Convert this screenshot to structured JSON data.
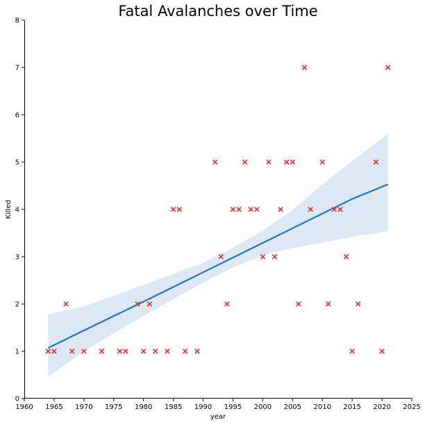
{
  "chart_data": {
    "type": "scatter",
    "title": "Fatal Avalanches over Time",
    "xlabel": "year",
    "ylabel": "Killed",
    "xlim": [
      1960,
      2025
    ],
    "ylim": [
      0,
      8
    ],
    "xticks": [
      1960,
      1965,
      1970,
      1975,
      1980,
      1985,
      1990,
      1995,
      2000,
      2005,
      2010,
      2015,
      2020,
      2025
    ],
    "yticks": [
      0,
      1,
      2,
      3,
      4,
      5,
      6,
      7,
      8
    ],
    "grid": false,
    "marker": "x",
    "marker_color": "#e8272b",
    "points": [
      {
        "x": 1964,
        "y": 1
      },
      {
        "x": 1965,
        "y": 1
      },
      {
        "x": 1967,
        "y": 2
      },
      {
        "x": 1968,
        "y": 1
      },
      {
        "x": 1970,
        "y": 1
      },
      {
        "x": 1973,
        "y": 1
      },
      {
        "x": 1976,
        "y": 1
      },
      {
        "x": 1977,
        "y": 1
      },
      {
        "x": 1979,
        "y": 2
      },
      {
        "x": 1980,
        "y": 1
      },
      {
        "x": 1981,
        "y": 2
      },
      {
        "x": 1982,
        "y": 1
      },
      {
        "x": 1984,
        "y": 1
      },
      {
        "x": 1985,
        "y": 4
      },
      {
        "x": 1986,
        "y": 4
      },
      {
        "x": 1987,
        "y": 1
      },
      {
        "x": 1989,
        "y": 1
      },
      {
        "x": 1992,
        "y": 5
      },
      {
        "x": 1993,
        "y": 3
      },
      {
        "x": 1994,
        "y": 2
      },
      {
        "x": 1995,
        "y": 4
      },
      {
        "x": 1996,
        "y": 4
      },
      {
        "x": 1997,
        "y": 5
      },
      {
        "x": 1998,
        "y": 4
      },
      {
        "x": 1999,
        "y": 4
      },
      {
        "x": 2000,
        "y": 3
      },
      {
        "x": 2001,
        "y": 5
      },
      {
        "x": 2002,
        "y": 3
      },
      {
        "x": 2003,
        "y": 4
      },
      {
        "x": 2004,
        "y": 5
      },
      {
        "x": 2005,
        "y": 5
      },
      {
        "x": 2006,
        "y": 2
      },
      {
        "x": 2007,
        "y": 7
      },
      {
        "x": 2008,
        "y": 4
      },
      {
        "x": 2010,
        "y": 5
      },
      {
        "x": 2011,
        "y": 2
      },
      {
        "x": 2012,
        "y": 4
      },
      {
        "x": 2013,
        "y": 4
      },
      {
        "x": 2014,
        "y": 3
      },
      {
        "x": 2015,
        "y": 1
      },
      {
        "x": 2016,
        "y": 2
      },
      {
        "x": 2019,
        "y": 5
      },
      {
        "x": 2020,
        "y": 1
      },
      {
        "x": 2021,
        "y": 7
      }
    ],
    "regression": {
      "color": "#1f77b4",
      "band_color": "#dce9f5",
      "x": [
        1964,
        1970,
        1980,
        1990,
        1995,
        2000,
        2005,
        2010,
        2015,
        2021
      ],
      "y": [
        1.07,
        1.44,
        2.05,
        2.67,
        2.98,
        3.29,
        3.6,
        3.91,
        4.22,
        4.53
      ],
      "ci_lower": [
        0.46,
        1.0,
        1.75,
        2.45,
        2.77,
        3.03,
        3.18,
        3.3,
        3.42,
        3.54
      ],
      "ci_upper": [
        1.78,
        1.95,
        2.4,
        2.87,
        3.19,
        3.55,
        3.99,
        4.53,
        5.02,
        5.6
      ]
    }
  }
}
